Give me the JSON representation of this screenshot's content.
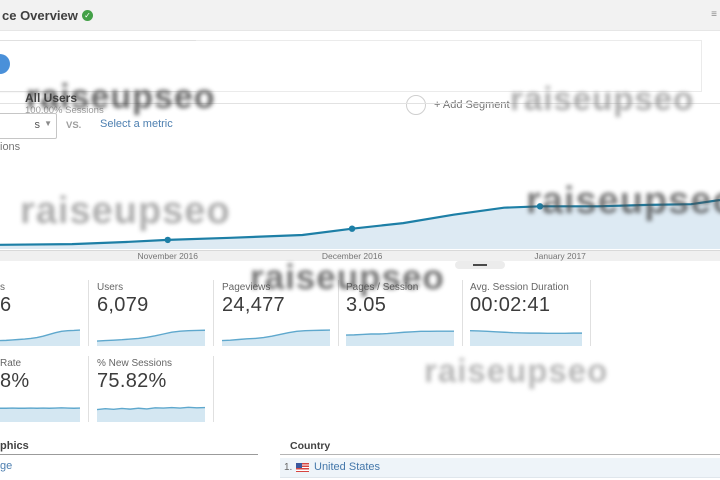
{
  "watermark": {
    "text": "raiseupseo"
  },
  "colors": {
    "chart_line": "#1d7fa6",
    "chart_fill": "#ddeaf3",
    "spark_line": "#5fa8cd",
    "spark_fill": "#d4e7f2",
    "link_blue": "#4d7fb0",
    "verified_green": "#43a047",
    "topbar_bg": "#f2f2f2"
  },
  "topbar": {
    "title_fragment": "ce Overview",
    "right_icon": "≡"
  },
  "segments": {
    "all_users": {
      "name": "All Users",
      "detail": "100.00% Sessions"
    },
    "add_segment_label": "+ Add Segment"
  },
  "controls": {
    "metric_select_fragment": "s",
    "metric_select_arrow": "▼",
    "vs_label": "VS.",
    "select_metric_label": "Select a metric",
    "legend_fragment": "ions"
  },
  "chart_data": {
    "type": "line",
    "metric": "Sessions",
    "x_tick_labels": [
      "November 2016",
      "December 2016",
      "January 2017"
    ],
    "x_tick_pos": [
      0.233,
      0.489,
      0.778
    ],
    "points": [
      {
        "t": 0.0,
        "v": 6
      },
      {
        "t": 0.1,
        "v": 7
      },
      {
        "t": 0.175,
        "v": 10
      },
      {
        "t": 0.233,
        "v": 13
      },
      {
        "t": 0.32,
        "v": 16
      },
      {
        "t": 0.42,
        "v": 20
      },
      {
        "t": 0.489,
        "v": 29
      },
      {
        "t": 0.56,
        "v": 37
      },
      {
        "t": 0.63,
        "v": 49
      },
      {
        "t": 0.7,
        "v": 59
      },
      {
        "t": 0.75,
        "v": 61
      },
      {
        "t": 0.83,
        "v": 61
      },
      {
        "t": 0.9,
        "v": 63
      },
      {
        "t": 0.96,
        "v": 64
      },
      {
        "t": 1.0,
        "v": 70
      }
    ],
    "dot_indices": [
      3,
      6,
      10
    ],
    "v_max": 120,
    "y_axis_visible": false,
    "grid": false,
    "legend_position": "none"
  },
  "metrics": {
    "row1": [
      {
        "label_fragment": "s",
        "value_fragment": "6",
        "spark": [
          2.0,
          2.1,
          2.3,
          2.5,
          2.7,
          3.0,
          3.4,
          4.0,
          4.8,
          5.6,
          6.2,
          6.5,
          6.6,
          6.8
        ]
      },
      {
        "label": "Users",
        "value": "6,079",
        "spark": [
          1.8,
          2.0,
          2.2,
          2.4,
          2.7,
          3.0,
          3.5,
          4.2,
          5.0,
          5.8,
          6.3,
          6.5,
          6.6,
          6.7
        ]
      },
      {
        "label": "Pageviews",
        "value": "24,477",
        "spark": [
          2.0,
          2.2,
          2.5,
          2.8,
          3.0,
          3.4,
          4.0,
          4.8,
          5.6,
          6.2,
          6.5,
          6.6,
          6.7,
          6.8
        ]
      },
      {
        "label": "Pages / Session",
        "value": "3.05",
        "spark": [
          4.5,
          4.6,
          4.8,
          5.0,
          5.0,
          5.2,
          5.5,
          5.8,
          6.0,
          6.2,
          6.2,
          6.3,
          6.3,
          6.3
        ]
      },
      {
        "label": "Avg. Session Duration",
        "value": "00:02:41",
        "spark": [
          6.5,
          6.4,
          6.2,
          6.0,
          5.8,
          5.6,
          5.5,
          5.4,
          5.4,
          5.3,
          5.3,
          5.3,
          5.4,
          5.4
        ]
      }
    ],
    "row2": [
      {
        "label_fragment": "Rate",
        "value_fragment": "8%",
        "spark": [
          5.8,
          5.8,
          5.9,
          5.8,
          5.8,
          5.9,
          5.8,
          5.9,
          5.8,
          5.9,
          6.0,
          5.9,
          5.8,
          5.9
        ]
      },
      {
        "label": "% New Sessions",
        "value": "75.82%",
        "spark": [
          5.2,
          5.6,
          5.3,
          5.7,
          5.4,
          5.8,
          5.5,
          6.0,
          5.9,
          6.1,
          5.9,
          6.2,
          6.0,
          6.1
        ]
      }
    ]
  },
  "geo": {
    "left_header_fragment": "phics",
    "left_link_fragment": "ge",
    "country_header": "Country",
    "rows": [
      {
        "rank": "1.",
        "country": "United States",
        "flag": "us-flag"
      }
    ]
  }
}
